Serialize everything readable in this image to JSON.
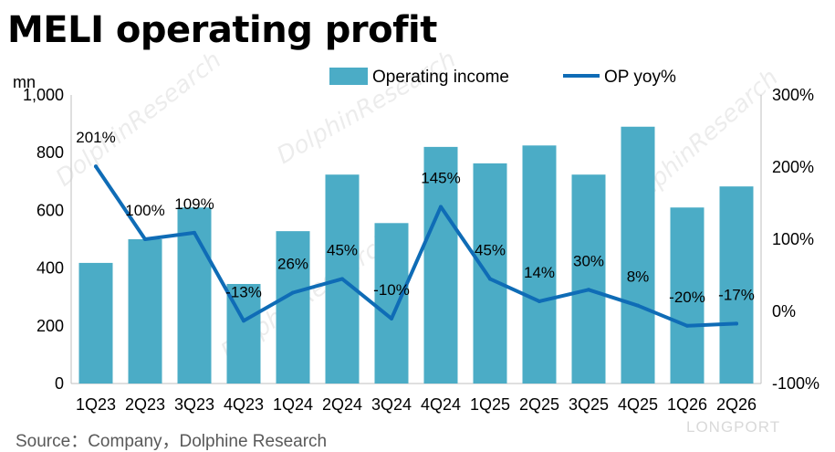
{
  "chart_data": {
    "type": "bar+line",
    "title": "MELI operating profit",
    "ylabel_left": "mn",
    "categories": [
      "1Q23",
      "2Q23",
      "3Q23",
      "4Q23",
      "1Q24",
      "2Q24",
      "3Q24",
      "4Q24",
      "1Q25",
      "2Q25",
      "3Q25",
      "4Q25",
      "1Q26",
      "2Q26"
    ],
    "series": [
      {
        "name": "Operating income",
        "type": "bar",
        "axis": "left",
        "color": "#4bacc6",
        "values": [
          418,
          500,
          610,
          345,
          528,
          724,
          556,
          820,
          763,
          825,
          724,
          890,
          610,
          683
        ]
      },
      {
        "name": "OP yoy%",
        "type": "line",
        "axis": "right",
        "color": "#0f6cb6",
        "values": [
          201,
          100,
          109,
          -13,
          26,
          45,
          -10,
          145,
          45,
          14,
          30,
          8,
          -20,
          -17
        ],
        "labels": [
          "201%",
          "100%",
          "109%",
          "-13%",
          "26%",
          "45%",
          "-10%",
          "145%",
          "45%",
          "14%",
          "30%",
          "8%",
          "-20%",
          "-17%"
        ]
      }
    ],
    "ylim_left": [
      0,
      1000
    ],
    "yticks_left": [
      "0",
      "200",
      "400",
      "600",
      "800",
      "1,000"
    ],
    "ylim_right": [
      -100,
      300
    ],
    "yticks_right": [
      "-100%",
      "0%",
      "100%",
      "200%",
      "300%"
    ],
    "grid": false,
    "legend": "top-center"
  },
  "source": "Source：Company，Dolphine Research",
  "watermarks": {
    "brand": "DolphinResearch",
    "footer": "LONGPORT"
  }
}
